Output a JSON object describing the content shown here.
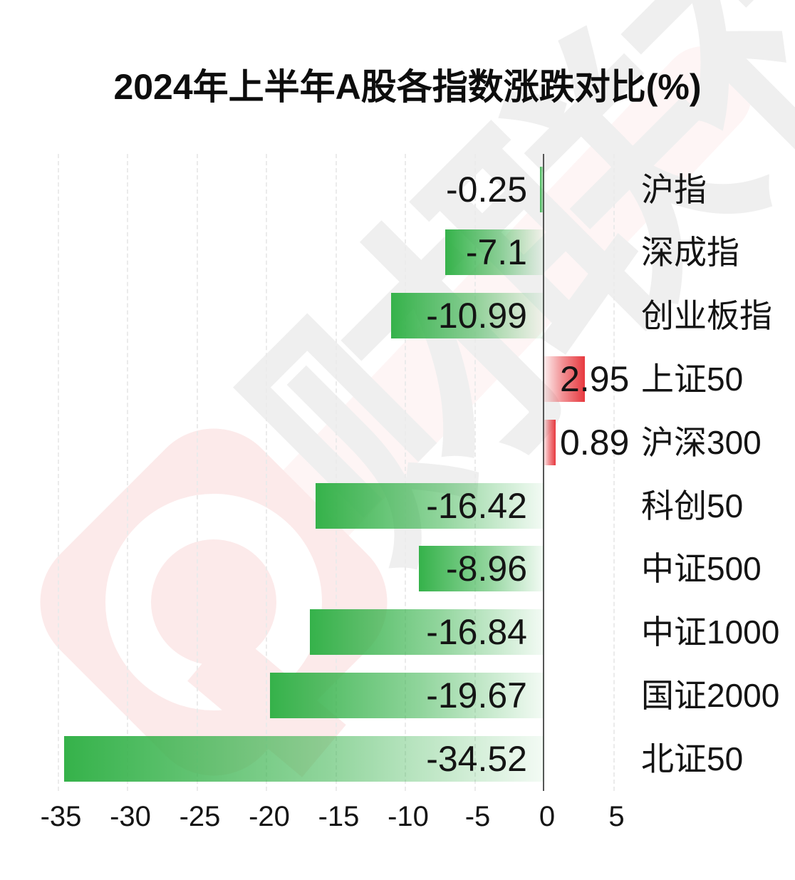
{
  "title": "2024年上半年A股各指数涨跌对比(%)",
  "watermark": {
    "logo": "cailianpress-diamond-c-logo",
    "chars": [
      "财",
      "联",
      "社"
    ]
  },
  "chart_data": {
    "type": "bar",
    "orientation": "horizontal",
    "title": "2024年上半年A股各指数涨跌对比(%)",
    "categories": [
      "沪指",
      "深成指",
      "创业板指",
      "上证50",
      "沪深300",
      "科创50",
      "中证500",
      "中证1000",
      "国证2000",
      "北证50"
    ],
    "values": [
      -0.25,
      -7.1,
      -10.99,
      2.95,
      0.89,
      -16.42,
      -8.96,
      -16.84,
      -19.67,
      -34.52
    ],
    "value_labels": [
      "-0.25",
      "-7.1",
      "-10.99",
      "2.95",
      "0.89",
      "-16.42",
      "-8.96",
      "-16.84",
      "-19.67",
      "-34.52"
    ],
    "x_ticks": [
      -35,
      -30,
      -25,
      -20,
      -15,
      -10,
      -5,
      0,
      5
    ],
    "xlim": [
      -35.7,
      7.3
    ],
    "grid": true,
    "legend": null,
    "colors": {
      "negative_bar": "#35b24a",
      "positive_bar": "#e7393f",
      "zero_axis_line": "#555555",
      "gridline": "#ebebeb",
      "text": "#141414"
    }
  }
}
